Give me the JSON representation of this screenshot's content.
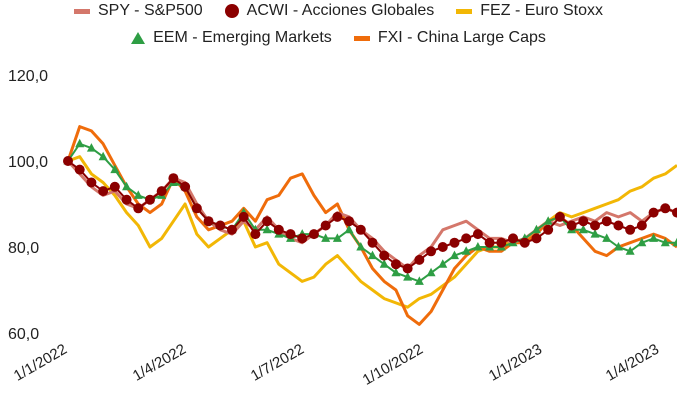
{
  "chart_data": {
    "type": "line",
    "title": "",
    "xlabel": "",
    "ylabel": "",
    "x_ticks": [
      "1/1/2022",
      "1/4/2022",
      "1/7/2022",
      "1/10/2022",
      "1/1/2023",
      "1/4/2023"
    ],
    "ylim": [
      60,
      120
    ],
    "y_ticks": [
      "60,0",
      "80,0",
      "100,0",
      "120,0"
    ],
    "grid": false,
    "legend_position": "top",
    "series": [
      {
        "name": "SPY - S&P500",
        "color": "#d4776b",
        "marker": "line",
        "values": [
          100,
          97,
          94,
          92,
          93,
          90,
          89,
          91,
          93,
          96,
          95,
          90,
          86,
          84,
          83,
          86,
          84,
          87,
          84,
          82,
          81,
          83,
          85,
          88,
          87,
          84,
          82,
          79,
          77,
          75,
          78,
          80,
          84,
          85,
          86,
          84,
          82,
          82,
          81,
          82,
          84,
          86,
          85,
          86,
          87,
          86,
          88,
          87,
          88,
          86,
          88,
          89,
          88
        ]
      },
      {
        "name": "ACWI - Acciones Globales",
        "color": "#8b0000",
        "marker": "circle",
        "values": [
          100,
          98,
          95,
          93,
          94,
          91,
          89,
          91,
          93,
          96,
          94,
          89,
          86,
          85,
          84,
          87,
          83,
          86,
          84,
          83,
          82,
          83,
          85,
          87,
          86,
          84,
          81,
          78,
          76,
          75,
          77,
          79,
          80,
          81,
          82,
          83,
          81,
          81,
          82,
          81,
          82,
          84,
          87,
          85,
          86,
          85,
          86,
          85,
          84,
          85,
          88,
          89,
          88
        ]
      },
      {
        "name": "FEZ - Euro Stoxx",
        "color": "#f2b705",
        "marker": "line",
        "values": [
          100,
          101,
          97,
          95,
          92,
          88,
          85,
          80,
          82,
          86,
          90,
          83,
          80,
          82,
          84,
          86,
          80,
          81,
          76,
          74,
          72,
          73,
          76,
          78,
          75,
          72,
          70,
          68,
          67,
          66,
          68,
          69,
          71,
          73,
          76,
          79,
          80,
          80,
          82,
          81,
          84,
          86,
          88,
          87,
          88,
          89,
          90,
          91,
          93,
          94,
          96,
          97,
          99
        ]
      },
      {
        "name": "EEM - Emerging Markets",
        "color": "#2e9e44",
        "marker": "triangle",
        "values": [
          100,
          104,
          103,
          101,
          98,
          94,
          92,
          91,
          92,
          95,
          94,
          89,
          86,
          85,
          84,
          88,
          84,
          84,
          83,
          82,
          83,
          83,
          82,
          82,
          84,
          80,
          78,
          76,
          74,
          73,
          72,
          74,
          76,
          78,
          79,
          80,
          80,
          80,
          81,
          82,
          84,
          86,
          87,
          84,
          84,
          83,
          82,
          80,
          79,
          81,
          82,
          81,
          81
        ]
      },
      {
        "name": "FXI - China Large Caps",
        "color": "#ef6c0b",
        "marker": "line",
        "values": [
          100,
          108,
          107,
          104,
          99,
          94,
          90,
          88,
          90,
          96,
          93,
          87,
          84,
          85,
          86,
          89,
          86,
          91,
          92,
          96,
          97,
          92,
          88,
          90,
          84,
          80,
          75,
          72,
          70,
          64,
          62,
          65,
          70,
          75,
          78,
          80,
          79,
          79,
          81,
          81,
          83,
          86,
          87,
          85,
          82,
          79,
          78,
          80,
          81,
          82,
          83,
          82,
          80
        ]
      }
    ]
  }
}
